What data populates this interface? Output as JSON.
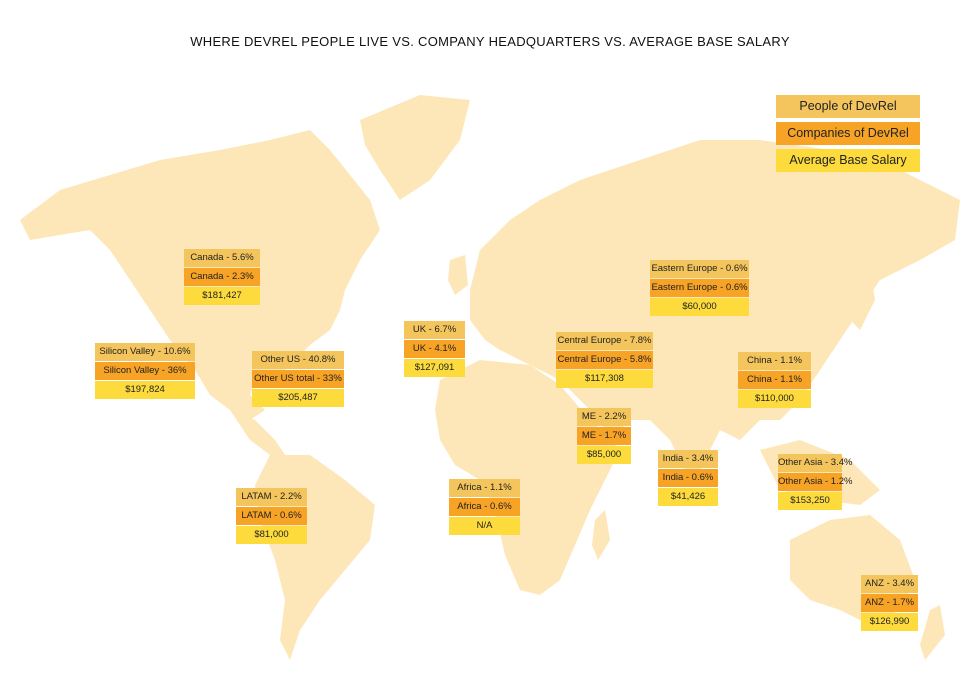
{
  "title": "WHERE DEVREL PEOPLE LIVE VS. COMPANY HEADQUARTERS VS. AVERAGE BASE SALARY",
  "colors": {
    "map": "#FDE7B8",
    "people": "#F4C55C",
    "companies": "#F7A325",
    "salary": "#FDDB3C"
  },
  "legend": {
    "people": "People of DevRel",
    "companies": "Companies of DevRel",
    "salary": "Average Base Salary"
  },
  "regions": [
    {
      "id": "canada",
      "people": "Canada - 5.6%",
      "companies": "Canada - 2.3%",
      "salary": "$181,427"
    },
    {
      "id": "silicon-valley",
      "people": "Silicon Valley - 10.6%",
      "companies": "Silicon Valley - 36%",
      "salary": "$197,824"
    },
    {
      "id": "other-us",
      "people": "Other US - 40.8%",
      "companies": "Other US total  - 33%",
      "salary": "$205,487"
    },
    {
      "id": "uk",
      "people": "UK - 6.7%",
      "companies": "UK - 4.1%",
      "salary": "$127,091"
    },
    {
      "id": "eastern-europe",
      "people": "Eastern Europe - 0.6%",
      "companies": "Eastern Europe - 0.6%",
      "salary": "$60,000"
    },
    {
      "id": "central-europe",
      "people": "Central Europe - 7.8%",
      "companies": "Central Europe - 5.8%",
      "salary": "$117,308"
    },
    {
      "id": "china",
      "people": "China - 1.1%",
      "companies": "China - 1.1%",
      "salary": "$110,000"
    },
    {
      "id": "me",
      "people": "ME - 2.2%",
      "companies": "ME - 1.7%",
      "salary": "$85,000"
    },
    {
      "id": "india",
      "people": "India - 3.4%",
      "companies": "India - 0.6%",
      "salary": "$41,426"
    },
    {
      "id": "other-asia",
      "people": "Other Asia - 3.4%",
      "companies": "Other Asia - 1.2%",
      "salary": "$153,250"
    },
    {
      "id": "latam",
      "people": "LATAM - 2.2%",
      "companies": "LATAM - 0.6%",
      "salary": "$81,000"
    },
    {
      "id": "africa",
      "people": "Africa - 1.1%",
      "companies": "Africa - 0.6%",
      "salary": "N/A"
    },
    {
      "id": "anz",
      "people": "ANZ - 3.4%",
      "companies": "ANZ - 1.7%",
      "salary": "$126,990"
    }
  ]
}
